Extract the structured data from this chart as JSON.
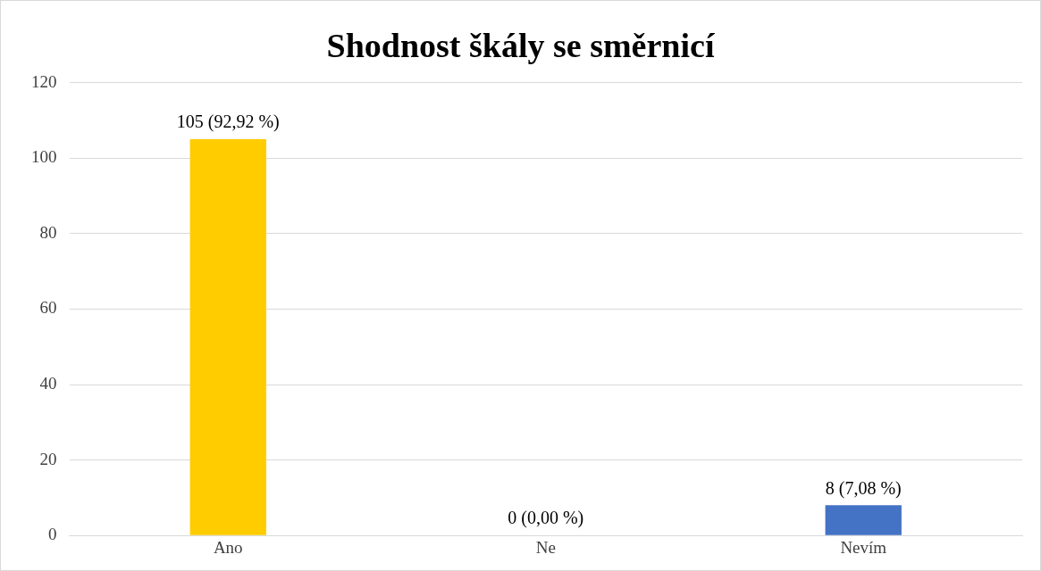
{
  "chart_data": {
    "type": "bar",
    "title": "Shodnost škály se směrnicí",
    "categories": [
      "Ano",
      "Ne",
      "Nevím"
    ],
    "values": [
      105,
      0,
      8
    ],
    "colors": [
      "#ffcc00",
      "#ed7d31",
      "#4472c4"
    ],
    "value_labels": [
      "105 (92,92 %)",
      "0 (0,00 %)",
      "8 (7,08 %)"
    ],
    "ylim": [
      0,
      120
    ],
    "yticks": [
      0,
      20,
      40,
      60,
      80,
      100,
      120
    ],
    "grid": "y",
    "legend": false
  }
}
